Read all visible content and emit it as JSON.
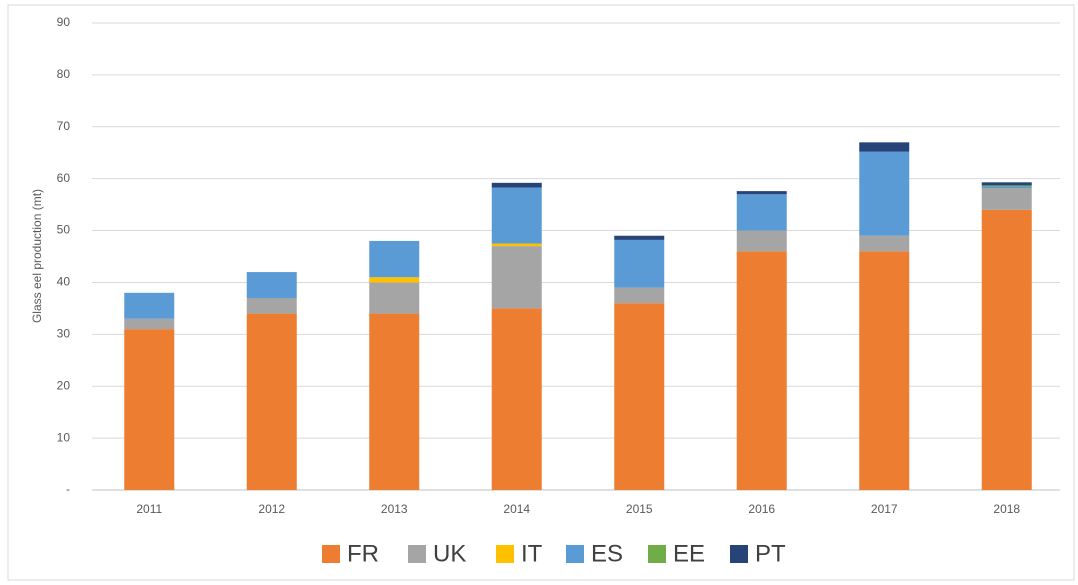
{
  "chart_data": {
    "type": "stacked_bar",
    "y_label": "Glass eel production (mt)",
    "categories": [
      "2011",
      "2012",
      "2013",
      "2014",
      "2015",
      "2016",
      "2017",
      "2018"
    ],
    "series": [
      {
        "name": "FR",
        "color": "#ed7d31",
        "values": [
          31,
          34,
          34,
          35,
          36,
          46,
          46,
          54
        ]
      },
      {
        "name": "UK",
        "color": "#a5a5a5",
        "values": [
          2,
          3,
          6,
          12,
          3,
          4,
          3,
          4.2
        ]
      },
      {
        "name": "IT",
        "color": "#ffc000",
        "values": [
          0,
          0,
          1,
          0.5,
          0,
          0,
          0,
          0
        ]
      },
      {
        "name": "ES",
        "color": "#5b9bd5",
        "values": [
          5,
          5,
          7,
          10.8,
          9.2,
          7,
          16.2,
          0.3
        ]
      },
      {
        "name": "EE",
        "color": "#70ad47",
        "values": [
          0,
          0,
          0,
          0,
          0,
          0,
          0,
          0.2
        ]
      },
      {
        "name": "PT",
        "color": "#264478",
        "values": [
          0,
          0,
          0,
          0.9,
          0.8,
          0.6,
          1.8,
          0.6
        ]
      }
    ],
    "ylim": [
      0,
      90
    ],
    "yticks": [
      {
        "value": 0,
        "label": "-"
      },
      10,
      20,
      30,
      40,
      50,
      60,
      70,
      80,
      90
    ],
    "grid": true,
    "legend": "bottom"
  }
}
